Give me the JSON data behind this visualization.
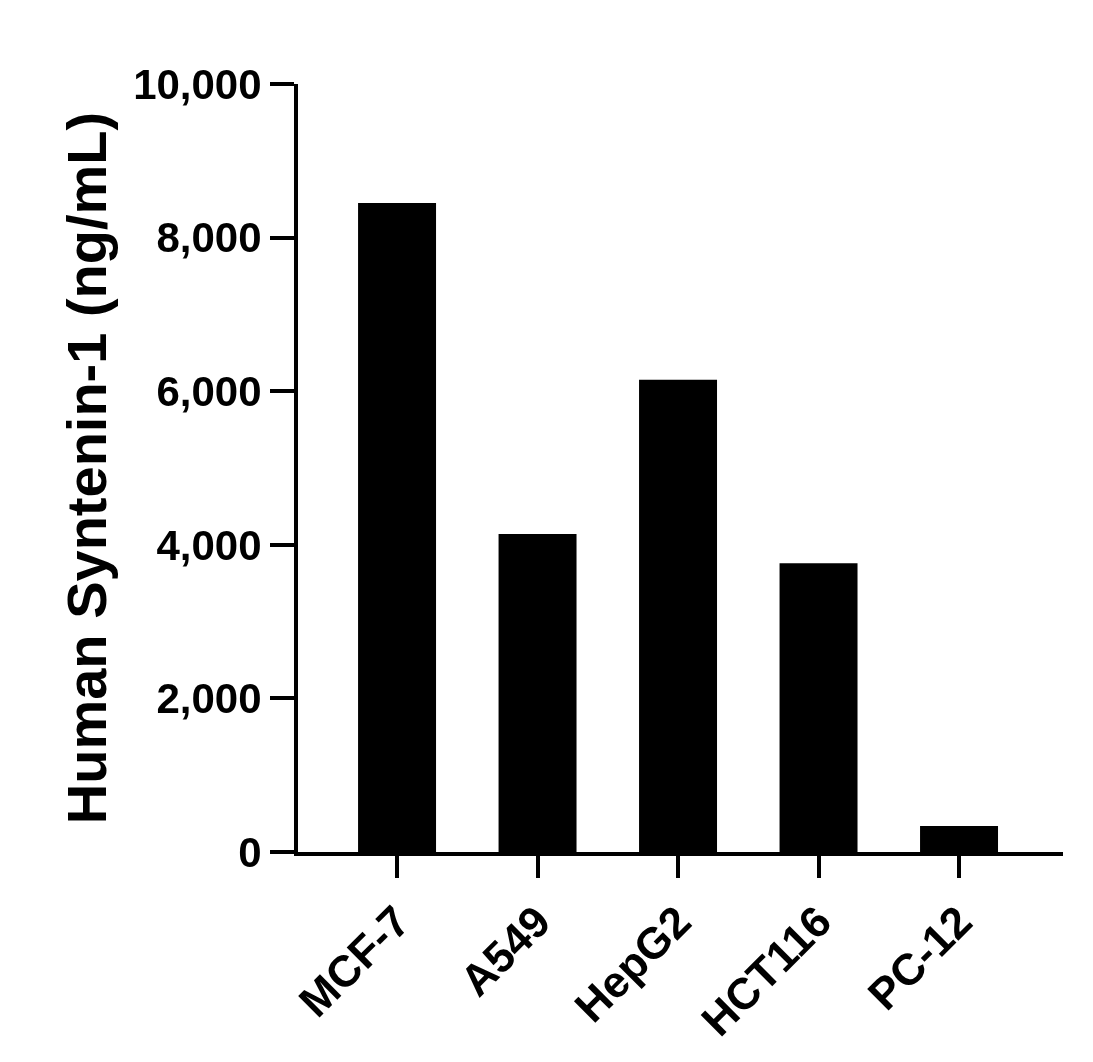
{
  "chart_data": {
    "type": "bar",
    "ylabel": "Human Syntenin-1 (ng/mL)",
    "categories": [
      "MCF-7",
      "A549",
      "HepG2",
      "HCT116",
      "PC-12"
    ],
    "values": [
      8450,
      4140,
      6150,
      3760,
      340
    ],
    "color": "#000000",
    "ylim": [
      0,
      10000
    ],
    "yticks": [
      0,
      {
        "value": 2000,
        "label": "2,000"
      },
      {
        "value": 4000,
        "label": "4,000"
      },
      {
        "value": 6000,
        "label": "6,000"
      },
      {
        "value": 8000,
        "label": "8,000"
      },
      {
        "value": 10000,
        "label": "10,000"
      }
    ]
  }
}
